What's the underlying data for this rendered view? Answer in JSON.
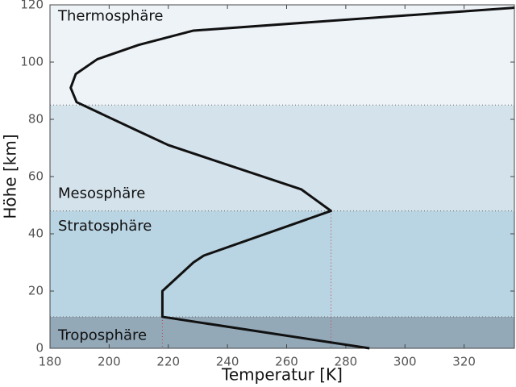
{
  "chart_data": {
    "type": "line",
    "x_label": "Temperatur [K]",
    "y_label": "Höhe [km]",
    "xlim": [
      180,
      337
    ],
    "ylim": [
      0,
      120
    ],
    "xticks": [
      180,
      200,
      220,
      240,
      260,
      280,
      300,
      320
    ],
    "yticks": [
      0,
      20,
      40,
      60,
      80,
      100,
      120
    ],
    "layers": [
      {
        "name": "Troposphäre",
        "range": [
          0,
          11
        ],
        "color": "#93a9b8"
      },
      {
        "name": "Stratosphäre",
        "range": [
          11,
          48
        ],
        "color": "#b9d4e2"
      },
      {
        "name": "Mesosphäre",
        "range": [
          48,
          85
        ],
        "color": "#d4e2eb"
      },
      {
        "name": "Thermosphäre",
        "range": [
          85,
          120
        ],
        "color": "#eef3f8"
      }
    ],
    "series": [
      {
        "color": "#111111",
        "x": [
          288,
          218,
          218,
          228.5,
          232,
          275,
          265,
          220,
          210,
          189,
          187,
          188.7,
          196,
          210,
          228.5,
          337
        ],
        "values": [
          0,
          11,
          20,
          30,
          32.4,
          48,
          55.5,
          71,
          75.8,
          86,
          91,
          95.8,
          101,
          106,
          111,
          119
        ]
      }
    ]
  }
}
